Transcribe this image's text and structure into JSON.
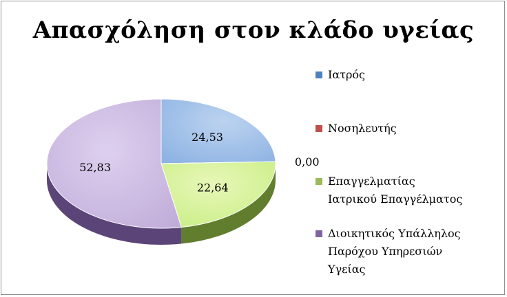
{
  "chart_data": {
    "type": "pie",
    "title": "Απασχόληση στον κλάδο υγείας",
    "categories": [
      "Ιατρός",
      "Νοσηλευτής",
      "Επαγγελματίας Ιατρικού Επαγγέλματος",
      "Διοικητικός Υπάλληλος Παρόχου Υπηρεσιών Υγείας"
    ],
    "values": [
      24.53,
      0.0,
      22.64,
      52.83
    ],
    "data_labels": [
      "24,53",
      "0,00",
      "22,64",
      "52,83"
    ],
    "colors": [
      "#4f81bd",
      "#c0504d",
      "#9bbb59",
      "#8064a2"
    ],
    "legend": {
      "position": "right",
      "items": [
        {
          "lines": [
            "Ιατρός"
          ],
          "color": "#4f81bd"
        },
        {
          "lines": [
            "Νοσηλευτής"
          ],
          "color": "#c0504d"
        },
        {
          "lines": [
            "Επαγγελματίας",
            "Ιατρικού Επαγγέλματος"
          ],
          "color": "#9bbb59"
        },
        {
          "lines": [
            "Διοικητικός Υπάλληλος",
            "Παρόχου Υπηρεσιών",
            "Υγείας"
          ],
          "color": "#8064a2"
        }
      ]
    },
    "style": "3d"
  }
}
